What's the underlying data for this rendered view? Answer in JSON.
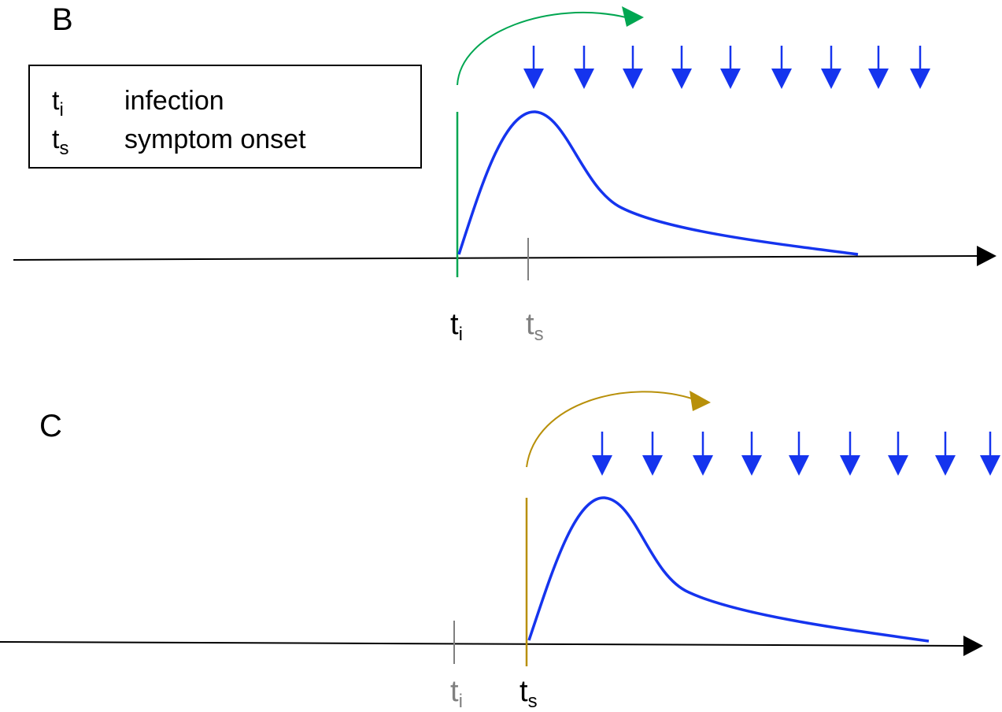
{
  "panels": [
    {
      "letter": "B",
      "ticks": [
        {
          "sym": "t",
          "sub": "i",
          "color": "#000000"
        },
        {
          "sym": "t",
          "sub": "s",
          "color": "#808080"
        }
      ],
      "start_line_color": "#00a651",
      "curved_arrow_color": "#00a651",
      "down_arrow_count": 9
    },
    {
      "letter": "C",
      "ticks": [
        {
          "sym": "t",
          "sub": "i",
          "color": "#808080"
        },
        {
          "sym": "t",
          "sub": "s",
          "color": "#000000"
        }
      ],
      "start_line_color": "#b8900a",
      "curved_arrow_color": "#b8900a",
      "down_arrow_count": 9
    }
  ],
  "legend": [
    {
      "sym": "t",
      "sub": "i",
      "text": "infection"
    },
    {
      "sym": "t",
      "sub": "s",
      "text": "symptom onset"
    }
  ],
  "colors": {
    "curve": "#1534ee",
    "down_arrows": "#1534ee",
    "axis": "#000000",
    "tick_gray": "#808080"
  }
}
